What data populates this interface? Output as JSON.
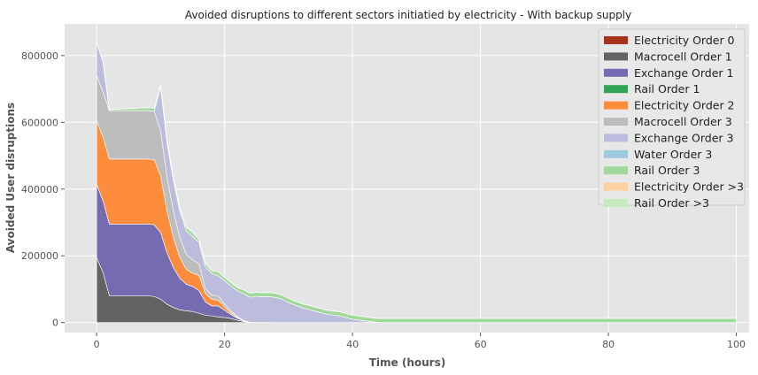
{
  "chart_data": {
    "type": "area",
    "title": "Avoided disruptions to different sectors initiatied by electricity - With backup supply",
    "xlabel": "Time (hours)",
    "ylabel": "Avoided User disruptions",
    "xlim": [
      -5,
      102
    ],
    "ylim": [
      -30000,
      895000
    ],
    "xticks": [
      0,
      20,
      40,
      60,
      80,
      100
    ],
    "yticks": [
      0,
      200000,
      400000,
      600000,
      800000
    ],
    "grid": true,
    "legend_position": "top-right",
    "x": [
      0,
      1,
      2,
      3,
      4,
      5,
      6,
      7,
      8,
      9,
      10,
      11,
      12,
      13,
      14,
      15,
      16,
      17,
      18,
      19,
      20,
      21,
      22,
      23,
      24,
      25,
      26,
      27,
      28,
      29,
      30,
      32,
      34,
      36,
      38,
      40,
      42,
      44,
      100
    ],
    "series": [
      {
        "name": "Electricity Order 0",
        "color": "#a6341b",
        "values": [
          0,
          0,
          0,
          0,
          0,
          0,
          0,
          0,
          0,
          0,
          0,
          0,
          0,
          0,
          0,
          0,
          0,
          0,
          0,
          0,
          0,
          0,
          0,
          0,
          0,
          0,
          0,
          0,
          0,
          0,
          0,
          0,
          0,
          0,
          0,
          0,
          0,
          0,
          0
        ]
      },
      {
        "name": "Macrocell Order 1",
        "color": "#636363",
        "values": [
          195000,
          150000,
          80000,
          80000,
          80000,
          80000,
          80000,
          80000,
          80000,
          78000,
          70000,
          55000,
          45000,
          38000,
          35000,
          33000,
          28000,
          22000,
          20000,
          17000,
          15000,
          12000,
          7000,
          3000,
          1000,
          500,
          300,
          200,
          100,
          0,
          0,
          0,
          0,
          0,
          0,
          0,
          0,
          0,
          0
        ]
      },
      {
        "name": "Exchange Order 1",
        "color": "#756bb1",
        "values": [
          220000,
          215000,
          215000,
          215000,
          215000,
          215000,
          215000,
          215000,
          215000,
          215000,
          200000,
          155000,
          120000,
          95000,
          80000,
          75000,
          68000,
          40000,
          30000,
          33000,
          22000,
          12000,
          6000,
          2000,
          0,
          0,
          0,
          0,
          0,
          0,
          0,
          0,
          0,
          0,
          0,
          0,
          0,
          0,
          0
        ]
      },
      {
        "name": "Rail Order 1",
        "color": "#31a354",
        "values": [
          0,
          0,
          0,
          0,
          0,
          0,
          0,
          0,
          0,
          0,
          0,
          0,
          0,
          0,
          0,
          0,
          0,
          0,
          0,
          0,
          0,
          0,
          0,
          0,
          0,
          0,
          0,
          0,
          0,
          0,
          0,
          0,
          0,
          0,
          0,
          0,
          0,
          0,
          0
        ]
      },
      {
        "name": "Electricity Order 2",
        "color": "#fd8d3c",
        "values": [
          190000,
          190000,
          195000,
          195000,
          195000,
          195000,
          195000,
          195000,
          195000,
          195000,
          170000,
          125000,
          90000,
          62000,
          45000,
          40000,
          45000,
          25000,
          20000,
          17000,
          10000,
          5000,
          2000,
          0,
          0,
          0,
          0,
          0,
          0,
          0,
          0,
          0,
          0,
          0,
          0,
          0,
          0,
          0,
          0
        ]
      },
      {
        "name": "Macrocell Order 3",
        "color": "#bdbdbd",
        "values": [
          135000,
          135000,
          145000,
          145000,
          145000,
          145000,
          145000,
          145000,
          145000,
          145000,
          135000,
          100000,
          80000,
          60000,
          45000,
          40000,
          35000,
          15000,
          12000,
          13000,
          8000,
          6000,
          3000,
          1000,
          0,
          0,
          0,
          0,
          0,
          0,
          0,
          0,
          0,
          0,
          0,
          0,
          0,
          0,
          0
        ]
      },
      {
        "name": "Exchange Order 3",
        "color": "#bcbddc",
        "values": [
          100000,
          90000,
          0,
          0,
          0,
          0,
          0,
          0,
          0,
          0,
          130000,
          105000,
          90000,
          80000,
          70000,
          70000,
          65000,
          65000,
          65000,
          60000,
          70000,
          75000,
          77000,
          80000,
          75000,
          78000,
          77000,
          78000,
          75000,
          70000,
          60000,
          45000,
          35000,
          25000,
          20000,
          10000,
          5000,
          0,
          0
        ]
      },
      {
        "name": "Water Order 3",
        "color": "#9ecae1",
        "values": [
          0,
          0,
          0,
          0,
          0,
          0,
          0,
          0,
          0,
          0,
          0,
          0,
          0,
          0,
          0,
          0,
          0,
          0,
          0,
          0,
          0,
          0,
          0,
          0,
          0,
          0,
          0,
          0,
          0,
          0,
          0,
          0,
          0,
          0,
          0,
          0,
          0,
          0,
          0
        ]
      },
      {
        "name": "Rail Order 3",
        "color": "#a1d99b",
        "values": [
          0,
          2000,
          3000,
          4000,
          5000,
          6000,
          7000,
          8000,
          9000,
          10000,
          9000,
          8000,
          8000,
          8000,
          10000,
          12000,
          8000,
          10000,
          8000,
          12000,
          10000,
          10000,
          10000,
          12000,
          12000,
          12000,
          12000,
          12000,
          12000,
          12000,
          12000,
          12000,
          12000,
          12000,
          12000,
          12000,
          12000,
          12000,
          12000
        ]
      },
      {
        "name": "Electricity Order >3",
        "color": "#fdd0a2",
        "values": [
          0,
          0,
          0,
          0,
          0,
          0,
          0,
          0,
          0,
          0,
          0,
          0,
          0,
          0,
          0,
          0,
          0,
          0,
          0,
          0,
          0,
          0,
          0,
          0,
          0,
          0,
          0,
          0,
          0,
          0,
          0,
          0,
          0,
          0,
          0,
          0,
          0,
          0,
          0
        ]
      },
      {
        "name": "Rail Order >3",
        "color": "#c7e9c0",
        "values": [
          0,
          0,
          0,
          0,
          0,
          0,
          0,
          0,
          0,
          0,
          0,
          0,
          0,
          0,
          0,
          0,
          0,
          0,
          0,
          0,
          0,
          0,
          0,
          0,
          0,
          0,
          0,
          0,
          0,
          0,
          0,
          0,
          0,
          0,
          0,
          0,
          0,
          0,
          0
        ]
      }
    ]
  }
}
